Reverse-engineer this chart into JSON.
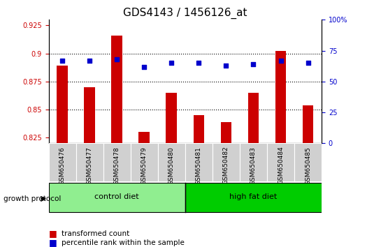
{
  "title": "GDS4143 / 1456126_at",
  "samples": [
    "GSM650476",
    "GSM650477",
    "GSM650478",
    "GSM650479",
    "GSM650480",
    "GSM650481",
    "GSM650482",
    "GSM650483",
    "GSM650484",
    "GSM650485"
  ],
  "red_values": [
    0.889,
    0.87,
    0.916,
    0.83,
    0.865,
    0.845,
    0.839,
    0.865,
    0.902,
    0.854
  ],
  "blue_values": [
    67,
    67,
    68,
    62,
    65,
    65,
    63,
    64,
    67,
    65
  ],
  "ylim_left": [
    0.82,
    0.93
  ],
  "ylim_right": [
    0,
    100
  ],
  "yticks_left": [
    0.825,
    0.85,
    0.875,
    0.9,
    0.925
  ],
  "yticks_right": [
    0,
    25,
    50,
    75,
    100
  ],
  "hlines": [
    0.85,
    0.875,
    0.9
  ],
  "groups": [
    {
      "label": "control diet",
      "start": 0,
      "end": 5,
      "color": "#90EE90"
    },
    {
      "label": "high fat diet",
      "start": 5,
      "end": 10,
      "color": "#00CC00"
    }
  ],
  "group_protocol_label": "growth protocol",
  "bar_color": "#CC0000",
  "dot_color": "#0000CC",
  "legend_bar_label": "transformed count",
  "legend_dot_label": "percentile rank within the sample",
  "title_fontsize": 11,
  "tick_label_fontsize": 7,
  "bar_bottom": 0.82
}
